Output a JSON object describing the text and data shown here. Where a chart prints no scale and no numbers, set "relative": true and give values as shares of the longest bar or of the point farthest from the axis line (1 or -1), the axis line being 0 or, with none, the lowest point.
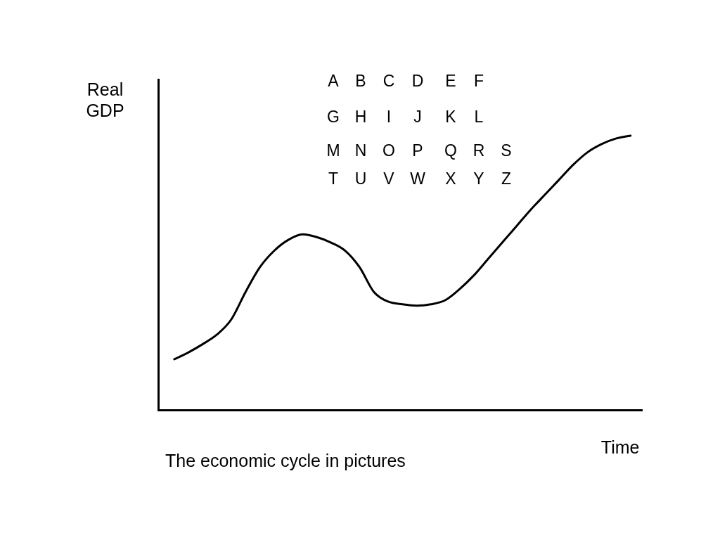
{
  "chart_data": {
    "type": "line",
    "relative": true,
    "xlabel": "Time",
    "ylabel": "Real GDP",
    "categories": [
      null,
      null,
      null,
      null,
      null,
      null,
      null,
      null,
      null,
      null,
      null,
      null,
      null,
      null,
      null,
      null,
      null,
      null,
      null,
      null,
      null,
      null,
      null,
      null,
      null,
      null,
      null,
      null,
      null,
      null,
      null,
      null,
      null
    ],
    "series": [
      {
        "color": "#000000",
        "values": [
          0.185,
          0.21,
          0.24,
          0.275,
          0.33,
          0.43,
          0.52,
          0.58,
          0.62,
          0.64,
          0.63,
          0.61,
          0.58,
          0.52,
          0.43,
          0.395,
          0.385,
          0.38,
          0.385,
          0.4,
          0.44,
          0.49,
          0.55,
          0.61,
          0.67,
          0.73,
          0.785,
          0.84,
          0.895,
          0.94,
          0.97,
          0.99,
          1
        ]
      }
    ],
    "annotations": [
      "A",
      "B",
      "C",
      "D",
      "E",
      "F",
      "G",
      "H",
      "I",
      "J",
      "K",
      "L",
      "M",
      "N",
      "O",
      "P",
      "Q",
      "R",
      "S",
      "T",
      "U",
      "V",
      "W",
      "X",
      "Y",
      "Z",
      "The economic cycle in pictures"
    ],
    "line_style": "solid"
  }
}
